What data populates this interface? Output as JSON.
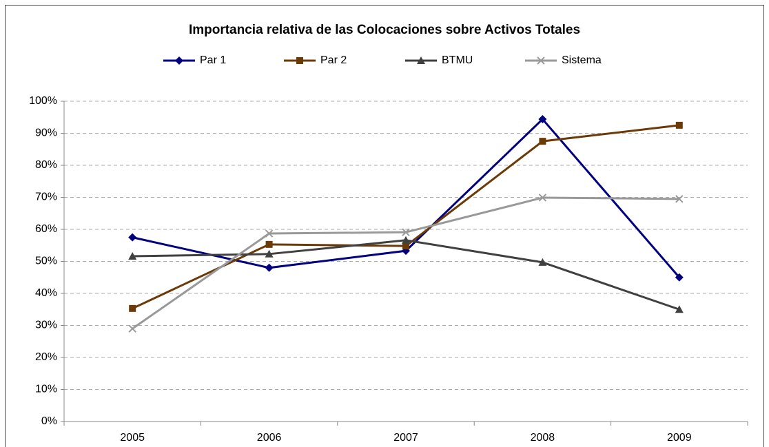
{
  "chart_data": {
    "type": "line",
    "title": "Importancia relativa de las Colocaciones sobre Activos Totales",
    "categories": [
      "2005",
      "2006",
      "2007",
      "2008",
      "2009"
    ],
    "series": [
      {
        "name": "Par 1",
        "color": "#000080",
        "marker": "diamond",
        "values": [
          57.5,
          48,
          53.3,
          94.4,
          45
        ]
      },
      {
        "name": "Par 2",
        "color": "#6b3a07",
        "marker": "square",
        "values": [
          35.3,
          55.3,
          54.8,
          87.5,
          92.5
        ]
      },
      {
        "name": "BTMU",
        "color": "#404040",
        "marker": "triangle",
        "values": [
          51.6,
          52.3,
          56.6,
          49.7,
          35
        ]
      },
      {
        "name": "Sistema",
        "color": "#999999",
        "marker": "x",
        "values": [
          29,
          58.7,
          59.1,
          69.9,
          69.5
        ]
      }
    ],
    "ylim": [
      0,
      100
    ],
    "yticks": [
      {
        "value": 0,
        "label": "0%"
      },
      {
        "value": 10,
        "label": "10%"
      },
      {
        "value": 20,
        "label": "20%"
      },
      {
        "value": 30,
        "label": "30%"
      },
      {
        "value": 40,
        "label": "40%"
      },
      {
        "value": 50,
        "label": "50%"
      },
      {
        "value": 60,
        "label": "60%"
      },
      {
        "value": 70,
        "label": "70%"
      },
      {
        "value": 80,
        "label": "80%"
      },
      {
        "value": 90,
        "label": "90%"
      },
      {
        "value": 100,
        "label": "100%"
      }
    ],
    "grid": true,
    "legend": "top"
  }
}
